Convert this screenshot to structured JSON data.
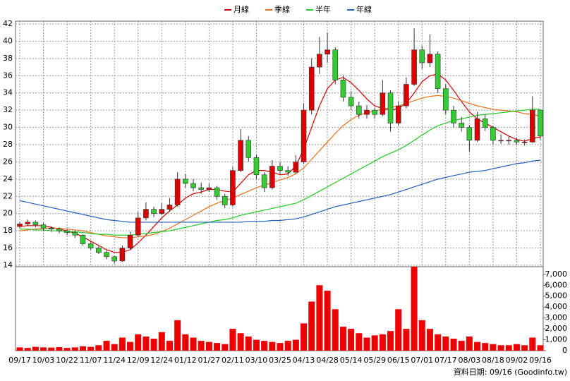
{
  "chart_data": {
    "type": "candlestick",
    "legend_position": "top",
    "footnote": "資料日期: 09/16 (Goodinfo.tw)",
    "categories": [
      "09/17",
      null,
      null,
      "10/03",
      null,
      null,
      "10/22",
      null,
      null,
      "11/07",
      null,
      null,
      "11/24",
      null,
      null,
      "12/09",
      null,
      null,
      "12/24",
      null,
      null,
      "01/12",
      null,
      null,
      "01/27",
      null,
      null,
      "02/11",
      null,
      null,
      "03/10",
      null,
      null,
      "03/25",
      null,
      null,
      "04/13",
      null,
      null,
      "04/28",
      null,
      null,
      "05/14",
      null,
      null,
      "05/29",
      null,
      null,
      "06/15",
      null,
      null,
      "07/01",
      null,
      null,
      "07/17",
      null,
      null,
      "08/03",
      null,
      null,
      "08/18",
      null,
      null,
      "09/02",
      null,
      null,
      "09/16"
    ],
    "open": [
      18.5,
      18.8,
      19.0,
      18.7,
      18.3,
      18.2,
      18.0,
      17.8,
      17.5,
      16.5,
      16.0,
      15.5,
      15.0,
      14.5,
      16.0,
      17.5,
      19.5,
      20.5,
      20.0,
      20.5,
      21.0,
      24.0,
      23.5,
      23.0,
      22.8,
      23.0,
      22.0,
      21.0,
      25.0,
      28.5,
      26.5,
      24.5,
      23.0,
      25.5,
      25.0,
      24.8,
      26.0,
      32.0,
      37.0,
      38.5,
      39.0,
      35.5,
      33.5,
      32.5,
      31.5,
      32.0,
      31.5,
      34.0,
      30.5,
      32.5,
      35.0,
      39.0,
      37.5,
      38.5,
      34.5,
      32.0,
      30.5,
      30.0,
      28.5,
      31.0,
      30.0,
      28.5,
      28.5,
      28.5,
      28.3,
      28.3,
      32.0
    ],
    "high": [
      19.0,
      19.3,
      19.2,
      18.9,
      18.5,
      18.4,
      18.2,
      18.0,
      17.6,
      16.7,
      16.2,
      15.7,
      15.1,
      16.3,
      17.9,
      20.2,
      21.3,
      20.8,
      21.2,
      21.8,
      24.8,
      24.6,
      24.0,
      23.6,
      23.5,
      23.2,
      22.3,
      25.4,
      29.8,
      29.0,
      26.8,
      24.8,
      26.2,
      26.0,
      25.5,
      26.8,
      32.8,
      38.0,
      40.5,
      41.0,
      39.3,
      36.0,
      34.2,
      33.0,
      32.6,
      32.3,
      35.5,
      34.3,
      33.0,
      35.8,
      41.5,
      39.5,
      40.8,
      38.8,
      35.0,
      32.5,
      31.2,
      30.3,
      31.8,
      31.5,
      30.2,
      29.2,
      29.0,
      28.8,
      28.6,
      33.6,
      32.0
    ],
    "low": [
      18.3,
      18.6,
      18.4,
      18.0,
      17.9,
      17.7,
      17.5,
      17.2,
      16.3,
      15.8,
      15.3,
      14.7,
      14.2,
      14.4,
      15.8,
      17.3,
      19.2,
      19.6,
      19.8,
      20.2,
      20.8,
      23.0,
      22.6,
      22.3,
      22.5,
      21.6,
      20.6,
      20.8,
      24.8,
      26.0,
      24.0,
      22.5,
      22.8,
      24.6,
      24.4,
      24.6,
      25.8,
      31.5,
      36.2,
      37.5,
      35.0,
      33.0,
      32.0,
      31.0,
      31.0,
      31.0,
      31.3,
      29.5,
      30.2,
      32.2,
      34.8,
      36.8,
      37.0,
      34.0,
      31.5,
      30.0,
      29.5,
      27.2,
      28.3,
      29.6,
      28.0,
      28.1,
      28.0,
      28.0,
      27.9,
      28.2,
      28.6
    ],
    "close": [
      18.8,
      19.0,
      18.7,
      18.3,
      18.2,
      18.0,
      17.8,
      17.5,
      16.5,
      16.0,
      15.5,
      15.0,
      14.5,
      16.0,
      17.5,
      19.5,
      20.5,
      20.0,
      20.5,
      21.0,
      24.0,
      23.5,
      23.0,
      22.8,
      23.0,
      22.0,
      21.0,
      25.0,
      28.5,
      26.5,
      24.5,
      23.0,
      25.5,
      25.0,
      24.8,
      26.0,
      32.0,
      37.0,
      38.5,
      39.0,
      35.5,
      33.5,
      32.5,
      31.5,
      32.0,
      31.5,
      34.0,
      30.5,
      32.5,
      35.0,
      39.0,
      37.5,
      38.5,
      34.5,
      32.0,
      30.5,
      30.0,
      28.5,
      31.0,
      30.0,
      28.5,
      28.5,
      28.5,
      28.3,
      28.3,
      32.0,
      29.0
    ],
    "up_color": "#dd0000",
    "down_color": "#33cc33",
    "volume": [
      300,
      250,
      350,
      300,
      280,
      320,
      250,
      300,
      400,
      350,
      500,
      900,
      600,
      1200,
      800,
      1500,
      1300,
      1100,
      1700,
      900,
      2800,
      1500,
      1200,
      900,
      800,
      700,
      600,
      2000,
      1600,
      1300,
      1000,
      900,
      800,
      700,
      900,
      1000,
      2500,
      4500,
      6000,
      5500,
      3800,
      2200,
      2000,
      1600,
      1200,
      1400,
      1500,
      1800,
      3800,
      2000,
      7700,
      2800,
      2000,
      1500,
      1300,
      1100,
      900,
      1300,
      800,
      700,
      600,
      500,
      500,
      600,
      500,
      1200,
      500
    ],
    "volume_color": "#ee0000",
    "series": [
      {
        "name": "月線",
        "color": "#d40000",
        "values": [
          18.5,
          18.6,
          18.6,
          18.6,
          18.4,
          18.2,
          18.0,
          17.7,
          17.3,
          16.8,
          16.3,
          15.8,
          15.5,
          15.5,
          15.8,
          16.6,
          17.5,
          18.5,
          19.5,
          20.3,
          21.0,
          21.8,
          22.3,
          22.5,
          22.8,
          22.8,
          22.6,
          22.5,
          23.5,
          24.5,
          25.0,
          25.0,
          24.8,
          24.5,
          24.6,
          25.5,
          27.5,
          30.0,
          32.5,
          34.5,
          35.5,
          35.8,
          35.2,
          34.3,
          33.3,
          32.5,
          32.2,
          32.0,
          32.2,
          32.8,
          34.0,
          35.3,
          36.0,
          36.2,
          35.5,
          34.3,
          33.0,
          31.8,
          31.0,
          30.5,
          30.0,
          29.5,
          29.0,
          28.6,
          28.4,
          28.7,
          28.9
        ]
      },
      {
        "name": "季線",
        "color": "#e8701a",
        "values": [
          18.0,
          18.1,
          18.2,
          18.3,
          18.3,
          18.3,
          18.2,
          18.1,
          18.0,
          17.8,
          17.6,
          17.4,
          17.3,
          17.2,
          17.2,
          17.3,
          17.4,
          17.6,
          17.9,
          18.3,
          18.8,
          19.3,
          19.8,
          20.3,
          20.8,
          21.2,
          21.5,
          21.8,
          22.2,
          22.6,
          23.0,
          23.3,
          23.6,
          23.9,
          24.2,
          24.6,
          25.3,
          26.3,
          27.3,
          28.3,
          29.3,
          30.2,
          30.9,
          31.4,
          31.7,
          31.9,
          32.1,
          32.3,
          32.5,
          32.8,
          33.1,
          33.4,
          33.6,
          33.7,
          33.6,
          33.4,
          33.1,
          32.8,
          32.5,
          32.3,
          32.1,
          32.0,
          31.9,
          31.8,
          31.6,
          31.5,
          31.3
        ]
      },
      {
        "name": "半年",
        "color": "#22cc22",
        "values": [
          18.2,
          18.2,
          18.1,
          18.1,
          18.0,
          18.0,
          17.9,
          17.9,
          17.8,
          17.7,
          17.6,
          17.6,
          17.5,
          17.5,
          17.5,
          17.6,
          17.7,
          17.8,
          17.9,
          18.0,
          18.2,
          18.4,
          18.6,
          18.8,
          19.0,
          19.2,
          19.3,
          19.5,
          19.8,
          20.0,
          20.2,
          20.4,
          20.6,
          20.8,
          21.0,
          21.2,
          21.6,
          22.1,
          22.6,
          23.1,
          23.6,
          24.1,
          24.6,
          25.1,
          25.6,
          26.1,
          26.6,
          27.0,
          27.4,
          27.9,
          28.5,
          29.1,
          29.7,
          30.2,
          30.5,
          30.8,
          31.0,
          31.2,
          31.4,
          31.5,
          31.6,
          31.7,
          31.8,
          31.9,
          32.0,
          32.1,
          32.1
        ]
      },
      {
        "name": "年線",
        "color": "#1f5fbf",
        "values": [
          21.5,
          21.3,
          21.1,
          20.9,
          20.7,
          20.5,
          20.3,
          20.1,
          19.9,
          19.7,
          19.5,
          19.3,
          19.2,
          19.1,
          19.0,
          19.0,
          19.0,
          19.0,
          19.0,
          19.0,
          19.0,
          19.0,
          19.0,
          19.0,
          19.0,
          19.0,
          19.0,
          19.0,
          19.0,
          19.1,
          19.1,
          19.1,
          19.2,
          19.2,
          19.3,
          19.4,
          19.6,
          19.9,
          20.2,
          20.5,
          20.8,
          21.0,
          21.2,
          21.4,
          21.6,
          21.8,
          22.0,
          22.2,
          22.5,
          22.8,
          23.1,
          23.4,
          23.7,
          24.0,
          24.2,
          24.4,
          24.6,
          24.8,
          24.9,
          25.0,
          25.2,
          25.4,
          25.6,
          25.8,
          25.9,
          26.1,
          26.2
        ]
      }
    ],
    "ylim": [
      14,
      42
    ],
    "yticks": [
      14,
      16,
      18,
      20,
      22,
      24,
      26,
      28,
      30,
      32,
      34,
      36,
      38,
      40,
      42
    ],
    "y2lim": [
      0,
      7700
    ],
    "y2ticks": [
      0,
      {
        "value": 1000,
        "label": "1,000"
      },
      {
        "value": 2000,
        "label": "2,000"
      },
      {
        "value": 3000,
        "label": "3,000"
      },
      {
        "value": 4000,
        "label": "4,000"
      },
      {
        "value": 5000,
        "label": "5,000"
      },
      {
        "value": 6000,
        "label": "6,000"
      },
      {
        "value": 7000,
        "label": "7,000"
      }
    ],
    "grid": true
  }
}
